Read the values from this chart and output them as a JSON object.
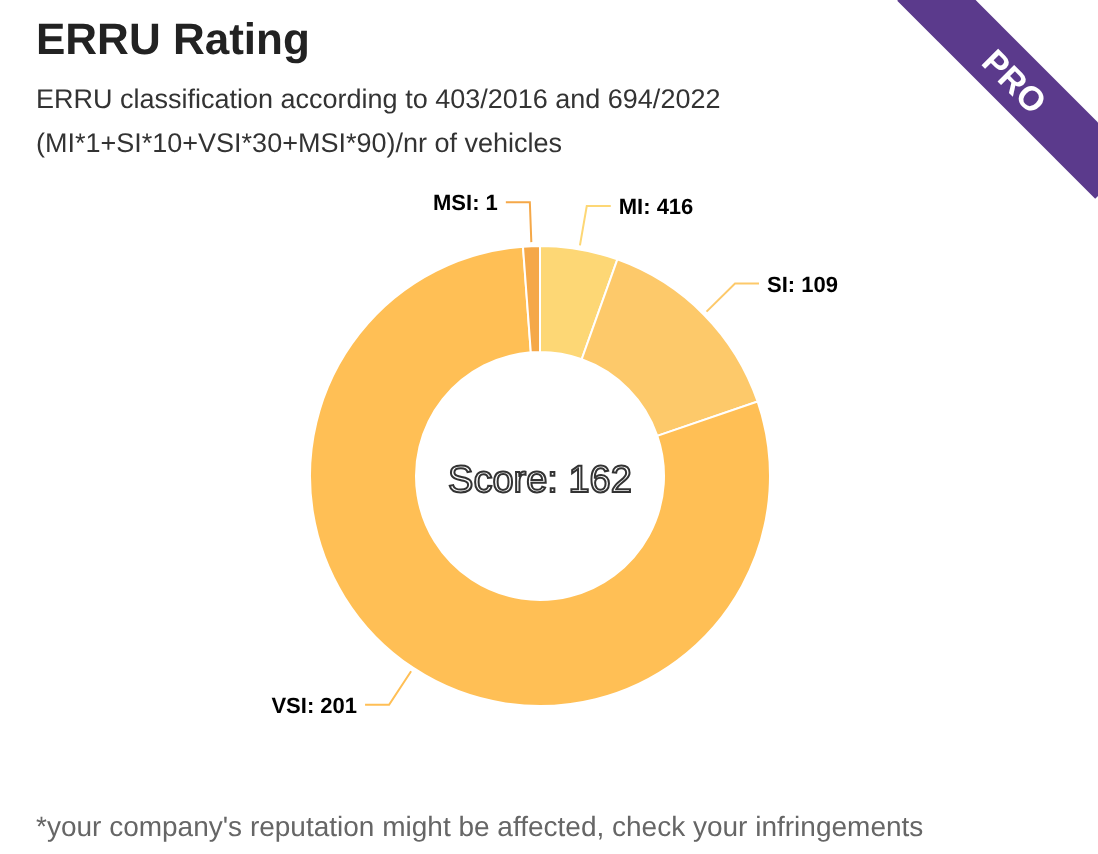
{
  "chart_data": {
    "type": "donut",
    "title": "ERRU Rating",
    "subtitle": "ERRU classification according to 403/2016 and 694/2022",
    "categories": [
      "MI: 416",
      "SI: 109",
      "VSI: 201",
      "MSI: 1"
    ],
    "values": [
      5.46,
      14.29,
      79.07,
      1.18
    ],
    "colors": [
      "#fdd775",
      "#fdc96a",
      "#ffbf55",
      "#f5a848"
    ],
    "annotations": [
      "(MI*1+SI*10+VSI*30+MSI*90)/nr of vehicles",
      "Score: 162",
      "*your company's reputation might be affected, check your infringements",
      "PRO"
    ]
  }
}
